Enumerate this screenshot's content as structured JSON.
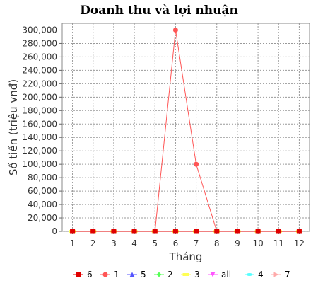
{
  "chart_data": {
    "type": "line",
    "title": "Doanh thu và lợi nhuận",
    "xlabel": "Tháng",
    "ylabel": "Số tiền (triệu vnđ)",
    "x": [
      1,
      2,
      3,
      4,
      5,
      6,
      7,
      8,
      9,
      10,
      11,
      12
    ],
    "ylim": [
      0,
      310000
    ],
    "yticks": [
      0,
      20000,
      40000,
      60000,
      80000,
      100000,
      120000,
      140000,
      160000,
      180000,
      200000,
      220000,
      240000,
      260000,
      280000,
      300000
    ],
    "ytick_labels": [
      "0",
      "20,000",
      "40,000",
      "60,000",
      "80,000",
      "100,000",
      "120,000",
      "140,000",
      "160,000",
      "180,000",
      "200,000",
      "220,000",
      "240,000",
      "260,000",
      "280,000",
      "300,000"
    ],
    "grid": true,
    "legend_position": "bottom",
    "series": [
      {
        "name": "6",
        "color": "#e00000",
        "marker": "square",
        "values": [
          0,
          0,
          0,
          0,
          0,
          0,
          0,
          0,
          0,
          0,
          0,
          0
        ]
      },
      {
        "name": "1",
        "color": "#ff5555",
        "marker": "circle",
        "values": [
          0,
          0,
          0,
          0,
          0,
          300000,
          100000,
          0,
          0,
          0,
          0,
          0
        ]
      },
      {
        "name": "5",
        "color": "#5555ff",
        "marker": "triangle-up",
        "values": [
          0,
          0,
          0,
          0,
          0,
          0,
          0,
          0,
          0,
          0,
          0,
          0
        ]
      },
      {
        "name": "2",
        "color": "#55ff55",
        "marker": "diamond",
        "values": [
          0,
          0,
          0,
          0,
          0,
          0,
          0,
          0,
          0,
          0,
          0,
          0
        ]
      },
      {
        "name": "3",
        "color": "#ffff55",
        "marker": "square-h",
        "values": [
          0,
          0,
          0,
          0,
          0,
          0,
          0,
          0,
          0,
          0,
          0,
          0
        ]
      },
      {
        "name": "all",
        "color": "#ff55ff",
        "marker": "triangle-down",
        "values": [
          0,
          0,
          0,
          0,
          0,
          0,
          0,
          0,
          0,
          0,
          0,
          0
        ]
      },
      {
        "name": "4",
        "color": "#55ffff",
        "marker": "ellipse",
        "values": [
          0,
          0,
          0,
          0,
          0,
          0,
          0,
          0,
          0,
          0,
          0,
          0
        ]
      },
      {
        "name": "7",
        "color": "#ffaaaa",
        "marker": "triangle-right",
        "values": [
          0,
          0,
          0,
          0,
          0,
          0,
          0,
          0,
          0,
          0,
          0,
          0
        ]
      }
    ]
  }
}
